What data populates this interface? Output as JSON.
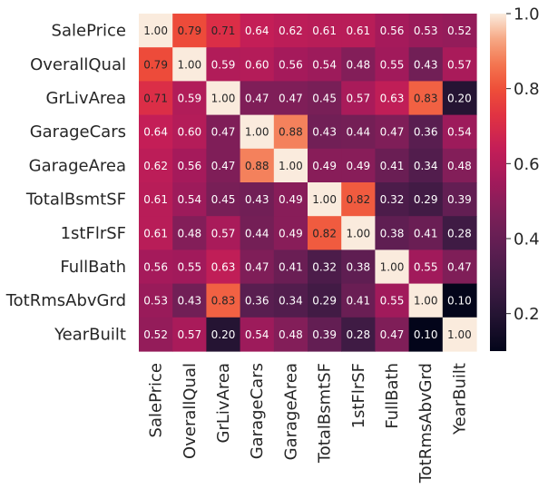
{
  "chart_data": {
    "type": "heatmap",
    "title": "",
    "variables": [
      "SalePrice",
      "OverallQual",
      "GrLivArea",
      "GarageCars",
      "GarageArea",
      "TotalBsmtSF",
      "1stFlrSF",
      "FullBath",
      "TotRmsAbvGrd",
      "YearBuilt"
    ],
    "matrix": [
      [
        1.0,
        0.79,
        0.71,
        0.64,
        0.62,
        0.61,
        0.61,
        0.56,
        0.53,
        0.52
      ],
      [
        0.79,
        1.0,
        0.59,
        0.6,
        0.56,
        0.54,
        0.48,
        0.55,
        0.43,
        0.57
      ],
      [
        0.71,
        0.59,
        1.0,
        0.47,
        0.47,
        0.45,
        0.57,
        0.63,
        0.83,
        0.2
      ],
      [
        0.64,
        0.6,
        0.47,
        1.0,
        0.88,
        0.43,
        0.44,
        0.47,
        0.36,
        0.54
      ],
      [
        0.62,
        0.56,
        0.47,
        0.88,
        1.0,
        0.49,
        0.49,
        0.41,
        0.34,
        0.48
      ],
      [
        0.61,
        0.54,
        0.45,
        0.43,
        0.49,
        1.0,
        0.82,
        0.32,
        0.29,
        0.39
      ],
      [
        0.61,
        0.48,
        0.57,
        0.44,
        0.49,
        0.82,
        1.0,
        0.38,
        0.41,
        0.28
      ],
      [
        0.56,
        0.55,
        0.63,
        0.47,
        0.41,
        0.32,
        0.38,
        1.0,
        0.55,
        0.47
      ],
      [
        0.53,
        0.43,
        0.83,
        0.36,
        0.34,
        0.29,
        0.41,
        0.55,
        1.0,
        0.1
      ],
      [
        0.52,
        0.57,
        0.2,
        0.54,
        0.48,
        0.39,
        0.28,
        0.47,
        0.1,
        1.0
      ]
    ],
    "annotation_format": "0.00",
    "colormap": "rocket",
    "colorbar": {
      "vmin": 0.1,
      "vmax": 1.0,
      "ticks": [
        0.2,
        0.4,
        0.6,
        0.8,
        1.0
      ],
      "tick_labels": [
        "0.2",
        "0.4",
        "0.6",
        "0.8",
        "1.0"
      ]
    },
    "colormap_stops": [
      [
        0.0,
        "#03051a"
      ],
      [
        0.1,
        "#221331"
      ],
      [
        0.2,
        "#3f1b44"
      ],
      [
        0.3,
        "#5c1e51"
      ],
      [
        0.4,
        "#7b1f58"
      ],
      [
        0.5,
        "#a11a5b"
      ],
      [
        0.6,
        "#c41e57"
      ],
      [
        0.7,
        "#e13342"
      ],
      [
        0.78,
        "#ef5038"
      ],
      [
        0.85,
        "#f37651"
      ],
      [
        0.92,
        "#f6a47f"
      ],
      [
        1.0,
        "#faebdd"
      ]
    ],
    "text_colors": {
      "dark": "#262626",
      "light": "#ffffff"
    }
  }
}
